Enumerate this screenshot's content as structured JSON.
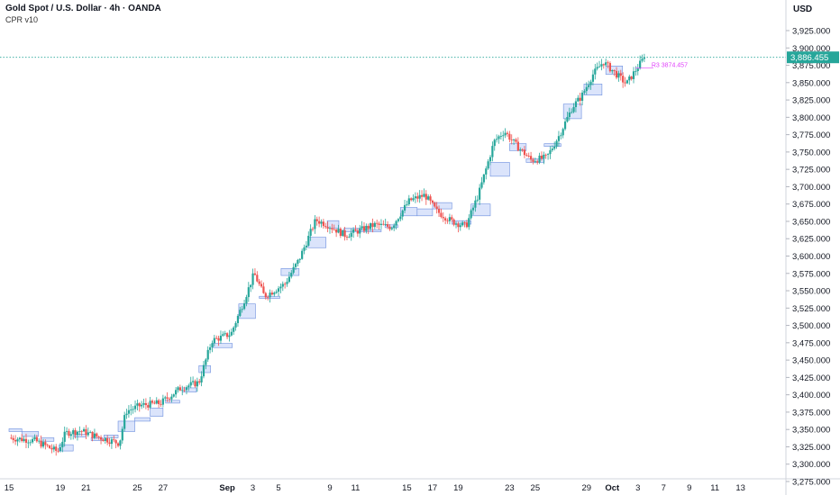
{
  "header": {
    "title": "Gold Spot / U.S. Dollar · 4h · OANDA",
    "indicator": "CPR v10",
    "currency": "USD"
  },
  "colors": {
    "up": "#26a69a",
    "down": "#ef5350",
    "box_fill": "#dbe4fb",
    "box_stroke": "#6b8ede",
    "price_line": "#26a69a",
    "magenta": "#e040fb",
    "axis_text": "#131722"
  },
  "chart_data": {
    "type": "candlestick",
    "symbol": "XAUUSD",
    "timeframe": "4h",
    "y_axis": {
      "min": 3255,
      "max": 3945,
      "ticks": [
        3275,
        3300,
        3325,
        3350,
        3375,
        3400,
        3425,
        3450,
        3475,
        3500,
        3525,
        3550,
        3575,
        3600,
        3625,
        3650,
        3675,
        3700,
        3725,
        3750,
        3775,
        3800,
        3825,
        3850,
        3875,
        3900,
        3925
      ],
      "tick_labels": [
        "3,275.000",
        "3,300.000",
        "3,325.000",
        "3,350.000",
        "3,375.000",
        "3,400.000",
        "3,425.000",
        "3,450.000",
        "3,475.000",
        "3,500.000",
        "3,525.000",
        "3,550.000",
        "3,575.000",
        "3,600.000",
        "3,625.000",
        "3,650.000",
        "3,675.000",
        "3,700.000",
        "3,725.000",
        "3,750.000",
        "3,775.000",
        "3,800.000",
        "3,825.000",
        "3,850.000",
        "3,875.000",
        "3,900.000",
        "3,925.000"
      ]
    },
    "x_axis": {
      "day_min": 0,
      "day_max": 58,
      "ticks": [
        {
          "day": 0,
          "label": "15",
          "bold": false
        },
        {
          "day": 4,
          "label": "19",
          "bold": false
        },
        {
          "day": 6,
          "label": "21",
          "bold": false
        },
        {
          "day": 10,
          "label": "25",
          "bold": false
        },
        {
          "day": 12,
          "label": "27",
          "bold": false
        },
        {
          "day": 17,
          "label": "Sep",
          "bold": true
        },
        {
          "day": 19,
          "label": "3",
          "bold": false
        },
        {
          "day": 21,
          "label": "5",
          "bold": false
        },
        {
          "day": 25,
          "label": "9",
          "bold": false
        },
        {
          "day": 27,
          "label": "11",
          "bold": false
        },
        {
          "day": 31,
          "label": "15",
          "bold": false
        },
        {
          "day": 33,
          "label": "17",
          "bold": false
        },
        {
          "day": 35,
          "label": "19",
          "bold": false
        },
        {
          "day": 39,
          "label": "23",
          "bold": false
        },
        {
          "day": 41,
          "label": "25",
          "bold": false
        },
        {
          "day": 45,
          "label": "29",
          "bold": false
        },
        {
          "day": 47,
          "label": "Oct",
          "bold": true
        },
        {
          "day": 49,
          "label": "3",
          "bold": false
        },
        {
          "day": 51,
          "label": "7",
          "bold": false
        },
        {
          "day": 53,
          "label": "9",
          "bold": false
        },
        {
          "day": 55,
          "label": "11",
          "bold": false
        },
        {
          "day": 57,
          "label": "13",
          "bold": false
        }
      ]
    },
    "last_price": 3886.455,
    "last_price_label": "3,886.455",
    "annotation": "R3 3874.457",
    "anchors": [
      {
        "day": 0,
        "close": 3338
      },
      {
        "day": 2,
        "close": 3334
      },
      {
        "day": 3.8,
        "close": 3318
      },
      {
        "day": 4.4,
        "close": 3345
      },
      {
        "day": 5.6,
        "close": 3348
      },
      {
        "day": 6.8,
        "close": 3340
      },
      {
        "day": 8.6,
        "close": 3330
      },
      {
        "day": 9.1,
        "close": 3376
      },
      {
        "day": 10.3,
        "close": 3385
      },
      {
        "day": 11.8,
        "close": 3388
      },
      {
        "day": 13.4,
        "close": 3410
      },
      {
        "day": 14.8,
        "close": 3418
      },
      {
        "day": 15.8,
        "close": 3478
      },
      {
        "day": 17.3,
        "close": 3488
      },
      {
        "day": 18.3,
        "close": 3535
      },
      {
        "day": 19.1,
        "close": 3575
      },
      {
        "day": 19.9,
        "close": 3542
      },
      {
        "day": 21.5,
        "close": 3560
      },
      {
        "day": 22.6,
        "close": 3595
      },
      {
        "day": 23.9,
        "close": 3652
      },
      {
        "day": 24.8,
        "close": 3645
      },
      {
        "day": 26.2,
        "close": 3630
      },
      {
        "day": 27.0,
        "close": 3635
      },
      {
        "day": 28.5,
        "close": 3645
      },
      {
        "day": 29.8,
        "close": 3642
      },
      {
        "day": 31.2,
        "close": 3680
      },
      {
        "day": 32.4,
        "close": 3688
      },
      {
        "day": 33.3,
        "close": 3665
      },
      {
        "day": 34.5,
        "close": 3650
      },
      {
        "day": 35.6,
        "close": 3643
      },
      {
        "day": 36.6,
        "close": 3690
      },
      {
        "day": 37.8,
        "close": 3765
      },
      {
        "day": 38.6,
        "close": 3780
      },
      {
        "day": 39.5,
        "close": 3760
      },
      {
        "day": 40.7,
        "close": 3738
      },
      {
        "day": 41.9,
        "close": 3742
      },
      {
        "day": 42.9,
        "close": 3775
      },
      {
        "day": 43.9,
        "close": 3815
      },
      {
        "day": 44.6,
        "close": 3830
      },
      {
        "day": 45.5,
        "close": 3862
      },
      {
        "day": 46.3,
        "close": 3880
      },
      {
        "day": 47.1,
        "close": 3866
      },
      {
        "day": 48.1,
        "close": 3848
      },
      {
        "day": 48.9,
        "close": 3870
      },
      {
        "day": 49.5,
        "close": 3886.455
      }
    ],
    "cpr_boxes": [
      {
        "d0": 0.0,
        "d1": 1.0,
        "hi": 3351,
        "lo": 3347
      },
      {
        "d0": 1.0,
        "d1": 2.3,
        "hi": 3347,
        "lo": 3340
      },
      {
        "d0": 2.5,
        "d1": 3.5,
        "hi": 3338,
        "lo": 3333
      },
      {
        "d0": 3.9,
        "d1": 5.0,
        "hi": 3328,
        "lo": 3319
      },
      {
        "d0": 5.1,
        "d1": 6.0,
        "hi": 3343,
        "lo": 3339
      },
      {
        "d0": 6.4,
        "d1": 7.3,
        "hi": 3338,
        "lo": 3334
      },
      {
        "d0": 7.4,
        "d1": 8.5,
        "hi": 3342,
        "lo": 3338
      },
      {
        "d0": 8.5,
        "d1": 9.8,
        "hi": 3362,
        "lo": 3347
      },
      {
        "d0": 9.8,
        "d1": 11.0,
        "hi": 3367,
        "lo": 3362
      },
      {
        "d0": 11.0,
        "d1": 12.0,
        "hi": 3381,
        "lo": 3369
      },
      {
        "d0": 12.2,
        "d1": 13.3,
        "hi": 3392,
        "lo": 3388
      },
      {
        "d0": 13.5,
        "d1": 14.6,
        "hi": 3410,
        "lo": 3404
      },
      {
        "d0": 14.8,
        "d1": 15.7,
        "hi": 3442,
        "lo": 3432
      },
      {
        "d0": 15.9,
        "d1": 17.4,
        "hi": 3474,
        "lo": 3468
      },
      {
        "d0": 17.9,
        "d1": 19.2,
        "hi": 3531,
        "lo": 3510
      },
      {
        "d0": 19.5,
        "d1": 21.1,
        "hi": 3542,
        "lo": 3539
      },
      {
        "d0": 21.2,
        "d1": 22.6,
        "hi": 3582,
        "lo": 3572
      },
      {
        "d0": 23.3,
        "d1": 24.7,
        "hi": 3627,
        "lo": 3612
      },
      {
        "d0": 24.8,
        "d1": 25.7,
        "hi": 3651,
        "lo": 3640
      },
      {
        "d0": 26.1,
        "d1": 27.4,
        "hi": 3640,
        "lo": 3635
      },
      {
        "d0": 27.4,
        "d1": 29.0,
        "hi": 3638,
        "lo": 3635
      },
      {
        "d0": 29.3,
        "d1": 30.3,
        "hi": 3645,
        "lo": 3641
      },
      {
        "d0": 30.5,
        "d1": 31.8,
        "hi": 3670,
        "lo": 3658
      },
      {
        "d0": 31.8,
        "d1": 33.0,
        "hi": 3668,
        "lo": 3658
      },
      {
        "d0": 33.0,
        "d1": 34.5,
        "hi": 3677,
        "lo": 3668
      },
      {
        "d0": 34.5,
        "d1": 36.0,
        "hi": 3651,
        "lo": 3646
      },
      {
        "d0": 36.0,
        "d1": 37.5,
        "hi": 3675,
        "lo": 3658
      },
      {
        "d0": 37.5,
        "d1": 39.0,
        "hi": 3735,
        "lo": 3715
      },
      {
        "d0": 39.0,
        "d1": 40.3,
        "hi": 3762,
        "lo": 3752
      },
      {
        "d0": 40.3,
        "d1": 41.7,
        "hi": 3740,
        "lo": 3735
      },
      {
        "d0": 41.7,
        "d1": 43.0,
        "hi": 3762,
        "lo": 3758
      },
      {
        "d0": 43.2,
        "d1": 44.6,
        "hi": 3819,
        "lo": 3798
      },
      {
        "d0": 44.8,
        "d1": 46.2,
        "hi": 3848,
        "lo": 3832
      },
      {
        "d0": 46.5,
        "d1": 47.8,
        "hi": 3874,
        "lo": 3862
      }
    ],
    "grid": false
  }
}
